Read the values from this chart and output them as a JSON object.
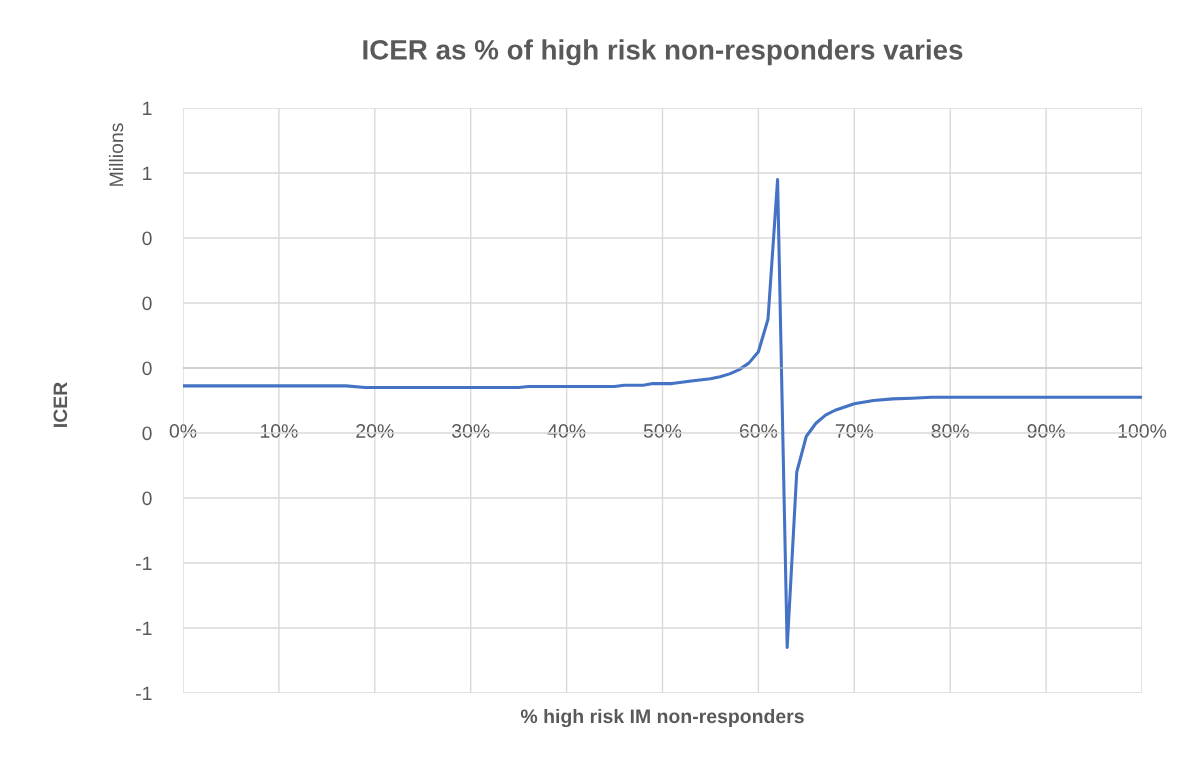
{
  "chart_data": {
    "type": "line",
    "title": "ICER as % of high risk non-responders varies",
    "xlabel": "% high risk IM non-responders",
    "ylabel": "ICER",
    "annotations": [
      "Millions"
    ],
    "x": [
      0,
      5,
      10,
      15,
      17,
      19,
      25,
      30,
      35,
      36,
      40,
      45,
      46,
      48,
      49,
      51,
      53,
      55,
      56,
      57,
      58,
      59,
      60,
      61,
      62,
      63,
      64,
      65,
      66,
      67,
      68,
      69,
      70,
      72,
      74,
      76,
      78,
      80,
      85,
      90,
      95,
      100
    ],
    "series": [
      {
        "color": "#4472c4",
        "values": [
          -0.055,
          -0.055,
          -0.055,
          -0.055,
          -0.055,
          -0.06,
          -0.06,
          -0.06,
          -0.06,
          -0.057,
          -0.057,
          -0.057,
          -0.053,
          -0.053,
          -0.048,
          -0.048,
          -0.04,
          -0.033,
          -0.027,
          -0.018,
          -0.005,
          0.015,
          0.05,
          0.15,
          0.58,
          -0.86,
          -0.32,
          -0.21,
          -0.17,
          -0.145,
          -0.13,
          -0.12,
          -0.11,
          -0.1,
          -0.095,
          -0.093,
          -0.09,
          -0.09,
          -0.09,
          -0.09,
          -0.09,
          -0.09
        ]
      }
    ],
    "xlim": [
      0,
      100
    ],
    "xticks": [
      {
        "value": 0,
        "label": "0%"
      },
      {
        "value": 10,
        "label": "10%"
      },
      {
        "value": 20,
        "label": "20%"
      },
      {
        "value": 30,
        "label": "30%"
      },
      {
        "value": 40,
        "label": "40%"
      },
      {
        "value": 50,
        "label": "50%"
      },
      {
        "value": 60,
        "label": "60%"
      },
      {
        "value": 70,
        "label": "70%"
      },
      {
        "value": 80,
        "label": "80%"
      },
      {
        "value": 90,
        "label": "90%"
      },
      {
        "value": 100,
        "label": "100%"
      }
    ],
    "ylim": [
      -1.0,
      0.8
    ],
    "yticks": [
      {
        "value": -1.0,
        "label": "-1"
      },
      {
        "value": -0.8,
        "label": "-1"
      },
      {
        "value": -0.6,
        "label": "-1"
      },
      {
        "value": -0.4,
        "label": "0"
      },
      {
        "value": -0.2,
        "label": "0"
      },
      {
        "value": 0,
        "label": "0"
      },
      {
        "value": 0.2,
        "label": "0"
      },
      {
        "value": 0.4,
        "label": "0"
      },
      {
        "value": 0.6,
        "label": "1"
      },
      {
        "value": 0.8,
        "label": "1"
      }
    ],
    "grid": true,
    "marker": "none",
    "line_style": "solid"
  }
}
